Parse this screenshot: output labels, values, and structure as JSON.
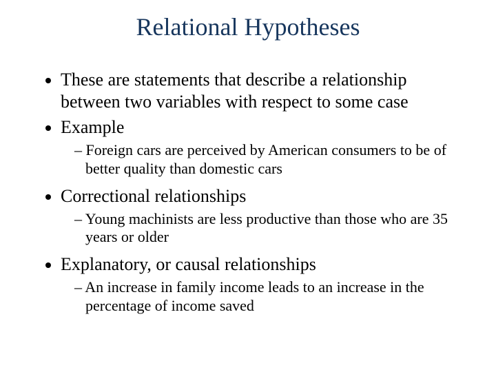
{
  "title": {
    "text": "Relational Hypotheses",
    "color": "#17365d",
    "fontsize": 36
  },
  "body": {
    "fontsize_level1": 26,
    "fontsize_level2": 22,
    "text_color": "#000000"
  },
  "bullets": [
    {
      "text": "These are statements that describe a relationship between two variables with respect to some case",
      "sub": []
    },
    {
      "text": "Example",
      "sub": [
        "Foreign cars are perceived by American consumers to be of better quality than domestic cars"
      ]
    },
    {
      "text": "Correctional relationships",
      "sub": [
        "Young machinists are less productive than those who are 35 years or older"
      ]
    },
    {
      "text": "Explanatory, or causal relationships",
      "sub": [
        "An increase in family income leads to an increase in the percentage of income saved"
      ]
    }
  ],
  "background_color": "#ffffff"
}
